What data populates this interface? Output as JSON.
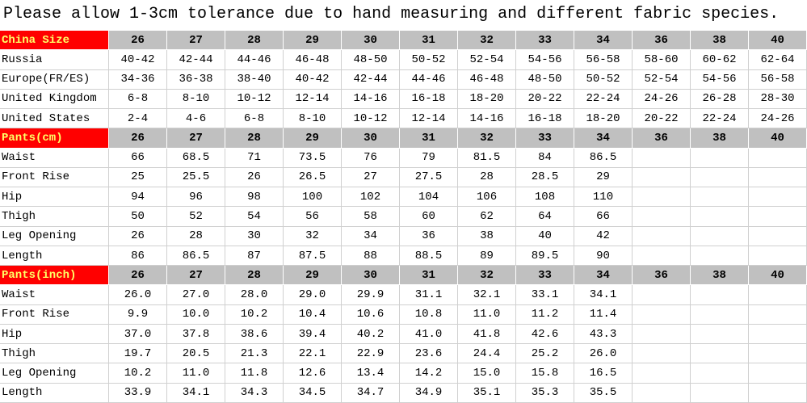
{
  "title": "Please allow 1-3cm tolerance due to hand measuring and different fabric species.",
  "sections": [
    {
      "header": [
        "China Size",
        "26",
        "27",
        "28",
        "29",
        "30",
        "31",
        "32",
        "33",
        "34",
        "36",
        "38",
        "40"
      ],
      "rows": [
        [
          "Russia",
          "40-42",
          "42-44",
          "44-46",
          "46-48",
          "48-50",
          "50-52",
          "52-54",
          "54-56",
          "56-58",
          "58-60",
          "60-62",
          "62-64"
        ],
        [
          "Europe(FR/ES)",
          "34-36",
          "36-38",
          "38-40",
          "40-42",
          "42-44",
          "44-46",
          "46-48",
          "48-50",
          "50-52",
          "52-54",
          "54-56",
          "56-58"
        ],
        [
          "United Kingdom",
          "6-8",
          "8-10",
          "10-12",
          "12-14",
          "14-16",
          "16-18",
          "18-20",
          "20-22",
          "22-24",
          "24-26",
          "26-28",
          "28-30"
        ],
        [
          "United States",
          "2-4",
          "4-6",
          "6-8",
          "8-10",
          "10-12",
          "12-14",
          "14-16",
          "16-18",
          "18-20",
          "20-22",
          "22-24",
          "24-26"
        ]
      ]
    },
    {
      "header": [
        "Pants(cm)",
        "26",
        "27",
        "28",
        "29",
        "30",
        "31",
        "32",
        "33",
        "34",
        "36",
        "38",
        "40"
      ],
      "rows": [
        [
          "Waist",
          "66",
          "68.5",
          "71",
          "73.5",
          "76",
          "79",
          "81.5",
          "84",
          "86.5"
        ],
        [
          "Front Rise",
          "25",
          "25.5",
          "26",
          "26.5",
          "27",
          "27.5",
          "28",
          "28.5",
          "29"
        ],
        [
          "Hip",
          "94",
          "96",
          "98",
          "100",
          "102",
          "104",
          "106",
          "108",
          "110"
        ],
        [
          "Thigh",
          "50",
          "52",
          "54",
          "56",
          "58",
          "60",
          "62",
          "64",
          "66"
        ],
        [
          "Leg Opening",
          "26",
          "28",
          "30",
          "32",
          "34",
          "36",
          "38",
          "40",
          "42"
        ],
        [
          "Length",
          "86",
          "86.5",
          "87",
          "87.5",
          "88",
          "88.5",
          "89",
          "89.5",
          "90"
        ]
      ]
    },
    {
      "header": [
        "Pants(inch)",
        "26",
        "27",
        "28",
        "29",
        "30",
        "31",
        "32",
        "33",
        "34",
        "36",
        "38",
        "40"
      ],
      "rows": [
        [
          "Waist",
          "26.0",
          "27.0",
          "28.0",
          "29.0",
          "29.9",
          "31.1",
          "32.1",
          "33.1",
          "34.1"
        ],
        [
          "Front Rise",
          "9.9",
          "10.0",
          "10.2",
          "10.4",
          "10.6",
          "10.8",
          "11.0",
          "11.2",
          "11.4"
        ],
        [
          "Hip",
          "37.0",
          "37.8",
          "38.6",
          "39.4",
          "40.2",
          "41.0",
          "41.8",
          "42.6",
          "43.3"
        ],
        [
          "Thigh",
          "19.7",
          "20.5",
          "21.3",
          "22.1",
          "22.9",
          "23.6",
          "24.4",
          "25.2",
          "26.0"
        ],
        [
          "Leg Opening",
          "10.2",
          "11.0",
          "11.8",
          "12.6",
          "13.4",
          "14.2",
          "15.0",
          "15.8",
          "16.5"
        ],
        [
          "Length",
          "33.9",
          "34.1",
          "34.3",
          "34.5",
          "34.7",
          "34.9",
          "35.1",
          "35.3",
          "35.5"
        ]
      ]
    }
  ]
}
